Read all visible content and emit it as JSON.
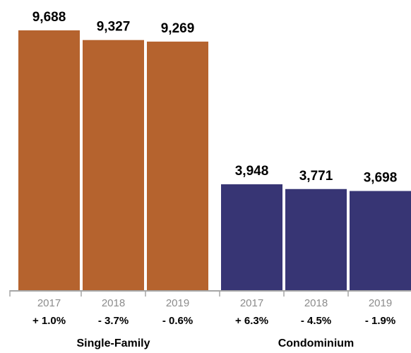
{
  "chart_data": {
    "type": "bar",
    "title": "",
    "xlabel": "",
    "ylabel": "",
    "ylim": [
      0,
      10000
    ],
    "grid": false,
    "groups": [
      {
        "name": "Single-Family",
        "color": "#b5632e",
        "bars": [
          {
            "year": "2017",
            "value": 9688,
            "value_label": "9,688",
            "change": "+ 1.0%"
          },
          {
            "year": "2018",
            "value": 9327,
            "value_label": "9,327",
            "change": "- 3.7%"
          },
          {
            "year": "2019",
            "value": 9269,
            "value_label": "9,269",
            "change": "- 0.6%"
          }
        ]
      },
      {
        "name": "Condominium",
        "color": "#373574",
        "bars": [
          {
            "year": "2017",
            "value": 3948,
            "value_label": "3,948",
            "change": "+ 6.3%"
          },
          {
            "year": "2018",
            "value": 3771,
            "value_label": "3,771",
            "change": "- 4.5%"
          },
          {
            "year": "2019",
            "value": 3698,
            "value_label": "3,698",
            "change": "- 1.9%"
          }
        ]
      }
    ],
    "axis_color": "#a6a6a6"
  }
}
